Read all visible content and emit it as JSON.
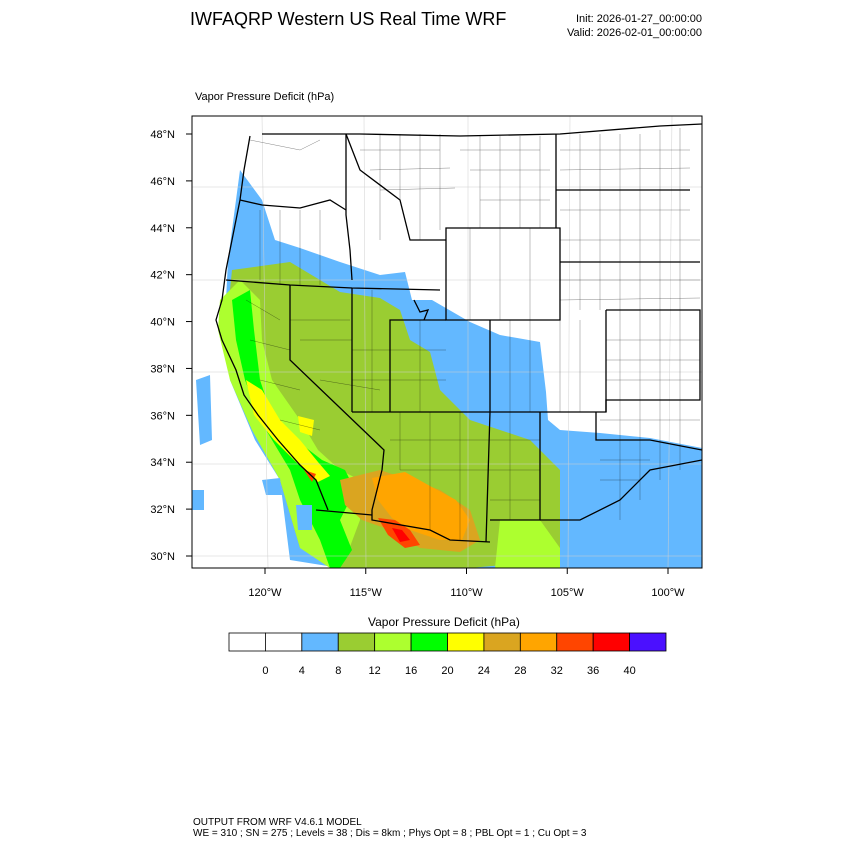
{
  "header": {
    "title": "IWFAQRP Western US Real Time WRF",
    "init": "Init: 2026-01-27_00:00:00",
    "valid": "Valid: 2026-02-01_00:00:00"
  },
  "map": {
    "field_label": "Vapor Pressure Deficit   (hPa)",
    "lat_labels": [
      "30°N",
      "32°N",
      "34°N",
      "36°N",
      "38°N",
      "40°N",
      "42°N",
      "44°N",
      "46°N",
      "48°N"
    ],
    "lat_values": [
      30,
      32,
      34,
      36,
      38,
      40,
      42,
      44,
      46,
      48
    ],
    "lon_labels": [
      "120°W",
      "115°W",
      "110°W",
      "105°W",
      "100°W"
    ],
    "lon_values": [
      -120,
      -115,
      -110,
      -105,
      -100
    ]
  },
  "legend": {
    "title": "Vapor Pressure Deficit  (hPa)",
    "tick_labels": [
      "0",
      "4",
      "8",
      "12",
      "16",
      "20",
      "24",
      "28",
      "32",
      "36",
      "40"
    ],
    "colors": [
      "#ffffff",
      "#ffffff",
      "#63b8ff",
      "#9acd32",
      "#adff2f",
      "#00ff00",
      "#ffff00",
      "#daa520",
      "#ffa500",
      "#ff4500",
      "#ff0000",
      "#4b10ff"
    ]
  },
  "footer": {
    "line1": "OUTPUT FROM WRF V4.6.1 MODEL",
    "line2": "WE = 310 ; SN = 275 ; Levels = 38 ; Dis = 8km ; Phys Opt = 8 ; PBL Opt = 1 ; Cu Opt = 3"
  }
}
